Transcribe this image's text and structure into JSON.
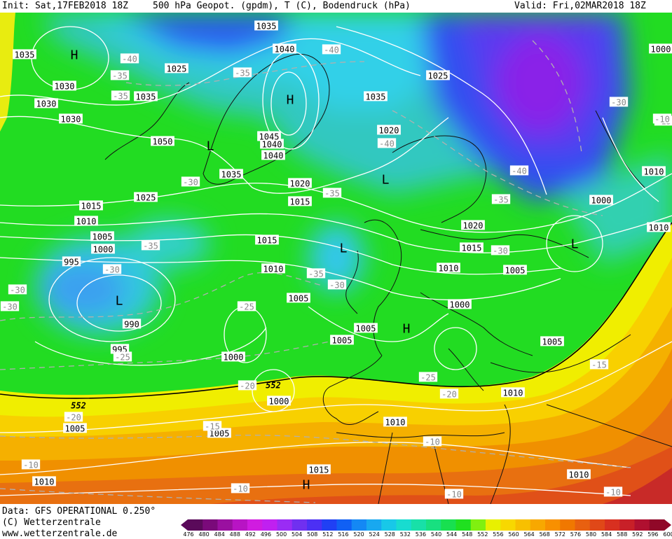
{
  "header": {
    "init": "Init: Sat,17FEB2018 18Z",
    "title": "500 hPa Geopot. (gpdm), T (C), Bodendruck (hPa)",
    "valid": "Valid: Fri,02MAR2018 18Z"
  },
  "footer": {
    "data_line": "Data: GFS OPERATIONAL 0.250°",
    "copyright": "(C) Wetterzentrale",
    "url": "www.wetterzentrale.de"
  },
  "colorbar": {
    "ticks": [
      "476",
      "480",
      "484",
      "488",
      "492",
      "496",
      "500",
      "504",
      "508",
      "512",
      "516",
      "520",
      "524",
      "528",
      "532",
      "536",
      "540",
      "544",
      "548",
      "552",
      "556",
      "560",
      "564",
      "568",
      "572",
      "576",
      "580",
      "584",
      "588",
      "592",
      "596",
      "600"
    ],
    "colors": [
      "#5a0a5a",
      "#7a0a7a",
      "#9a10a0",
      "#b814c4",
      "#d01ce0",
      "#c020f0",
      "#9a2cf4",
      "#7030f0",
      "#4c30f4",
      "#2040f4",
      "#1060f4",
      "#1488f4",
      "#18a8f0",
      "#18c8e8",
      "#18dcd0",
      "#18e0a8",
      "#18e080",
      "#18e050",
      "#20e020",
      "#80f010",
      "#e8f000",
      "#f8d800",
      "#f8c000",
      "#f8a800",
      "#f89000",
      "#f07800",
      "#e86010",
      "#e04818",
      "#d83020",
      "#c82028",
      "#b01030",
      "#900828"
    ]
  },
  "map": {
    "colors": {
      "green": "#22dc22",
      "cyan": "#33c8e8",
      "blue": "#2a52f0",
      "purple": "#7a2ae8",
      "yellow": "#f0ee00",
      "orange": "#f5a000",
      "red": "#e05018"
    },
    "pressure_centers": [
      {
        "id": "H1",
        "label": "H"
      },
      {
        "id": "H2",
        "label": "H"
      },
      {
        "id": "L1",
        "label": "L"
      },
      {
        "id": "L2",
        "label": "L"
      },
      {
        "id": "L3",
        "label": "L"
      },
      {
        "id": "L4",
        "label": "L"
      },
      {
        "id": "L5",
        "label": "L"
      },
      {
        "id": "H3",
        "label": "H"
      },
      {
        "id": "H4",
        "label": "H"
      }
    ],
    "isobar_labels": [
      "1035",
      "1040",
      "1025",
      "1040",
      "1035",
      "1030",
      "1030",
      "1035",
      "1050",
      "1045",
      "1040",
      "1035",
      "1025",
      "1035",
      "1020",
      "1030",
      "1025",
      "1015",
      "1020",
      "1015",
      "1010",
      "1005",
      "1000",
      "995",
      "1015",
      "1010",
      "1005",
      "1020",
      "1015",
      "1010",
      "1005",
      "1000",
      "1005",
      "1005",
      "1000",
      "1010",
      "1010",
      "990",
      "995",
      "1000",
      "1000",
      "1005",
      "1005",
      "1010",
      "1010",
      "1015",
      "1010",
      "1010",
      "1005",
      "1000"
    ],
    "temp_labels": [
      "-40",
      "-35",
      "-40",
      "-35",
      "-30",
      "-35",
      "-35",
      "-30",
      "-40",
      "-35",
      "-35",
      "-30",
      "-35",
      "-30",
      "-40",
      "-30",
      "-25",
      "-30",
      "-25",
      "-20",
      "-20",
      "-15",
      "-15",
      "-10",
      "-10",
      "-10",
      "-10",
      "-10",
      "-30",
      "-20",
      "-25",
      "-15",
      "-10"
    ],
    "height_labels": [
      "552",
      "552"
    ]
  }
}
